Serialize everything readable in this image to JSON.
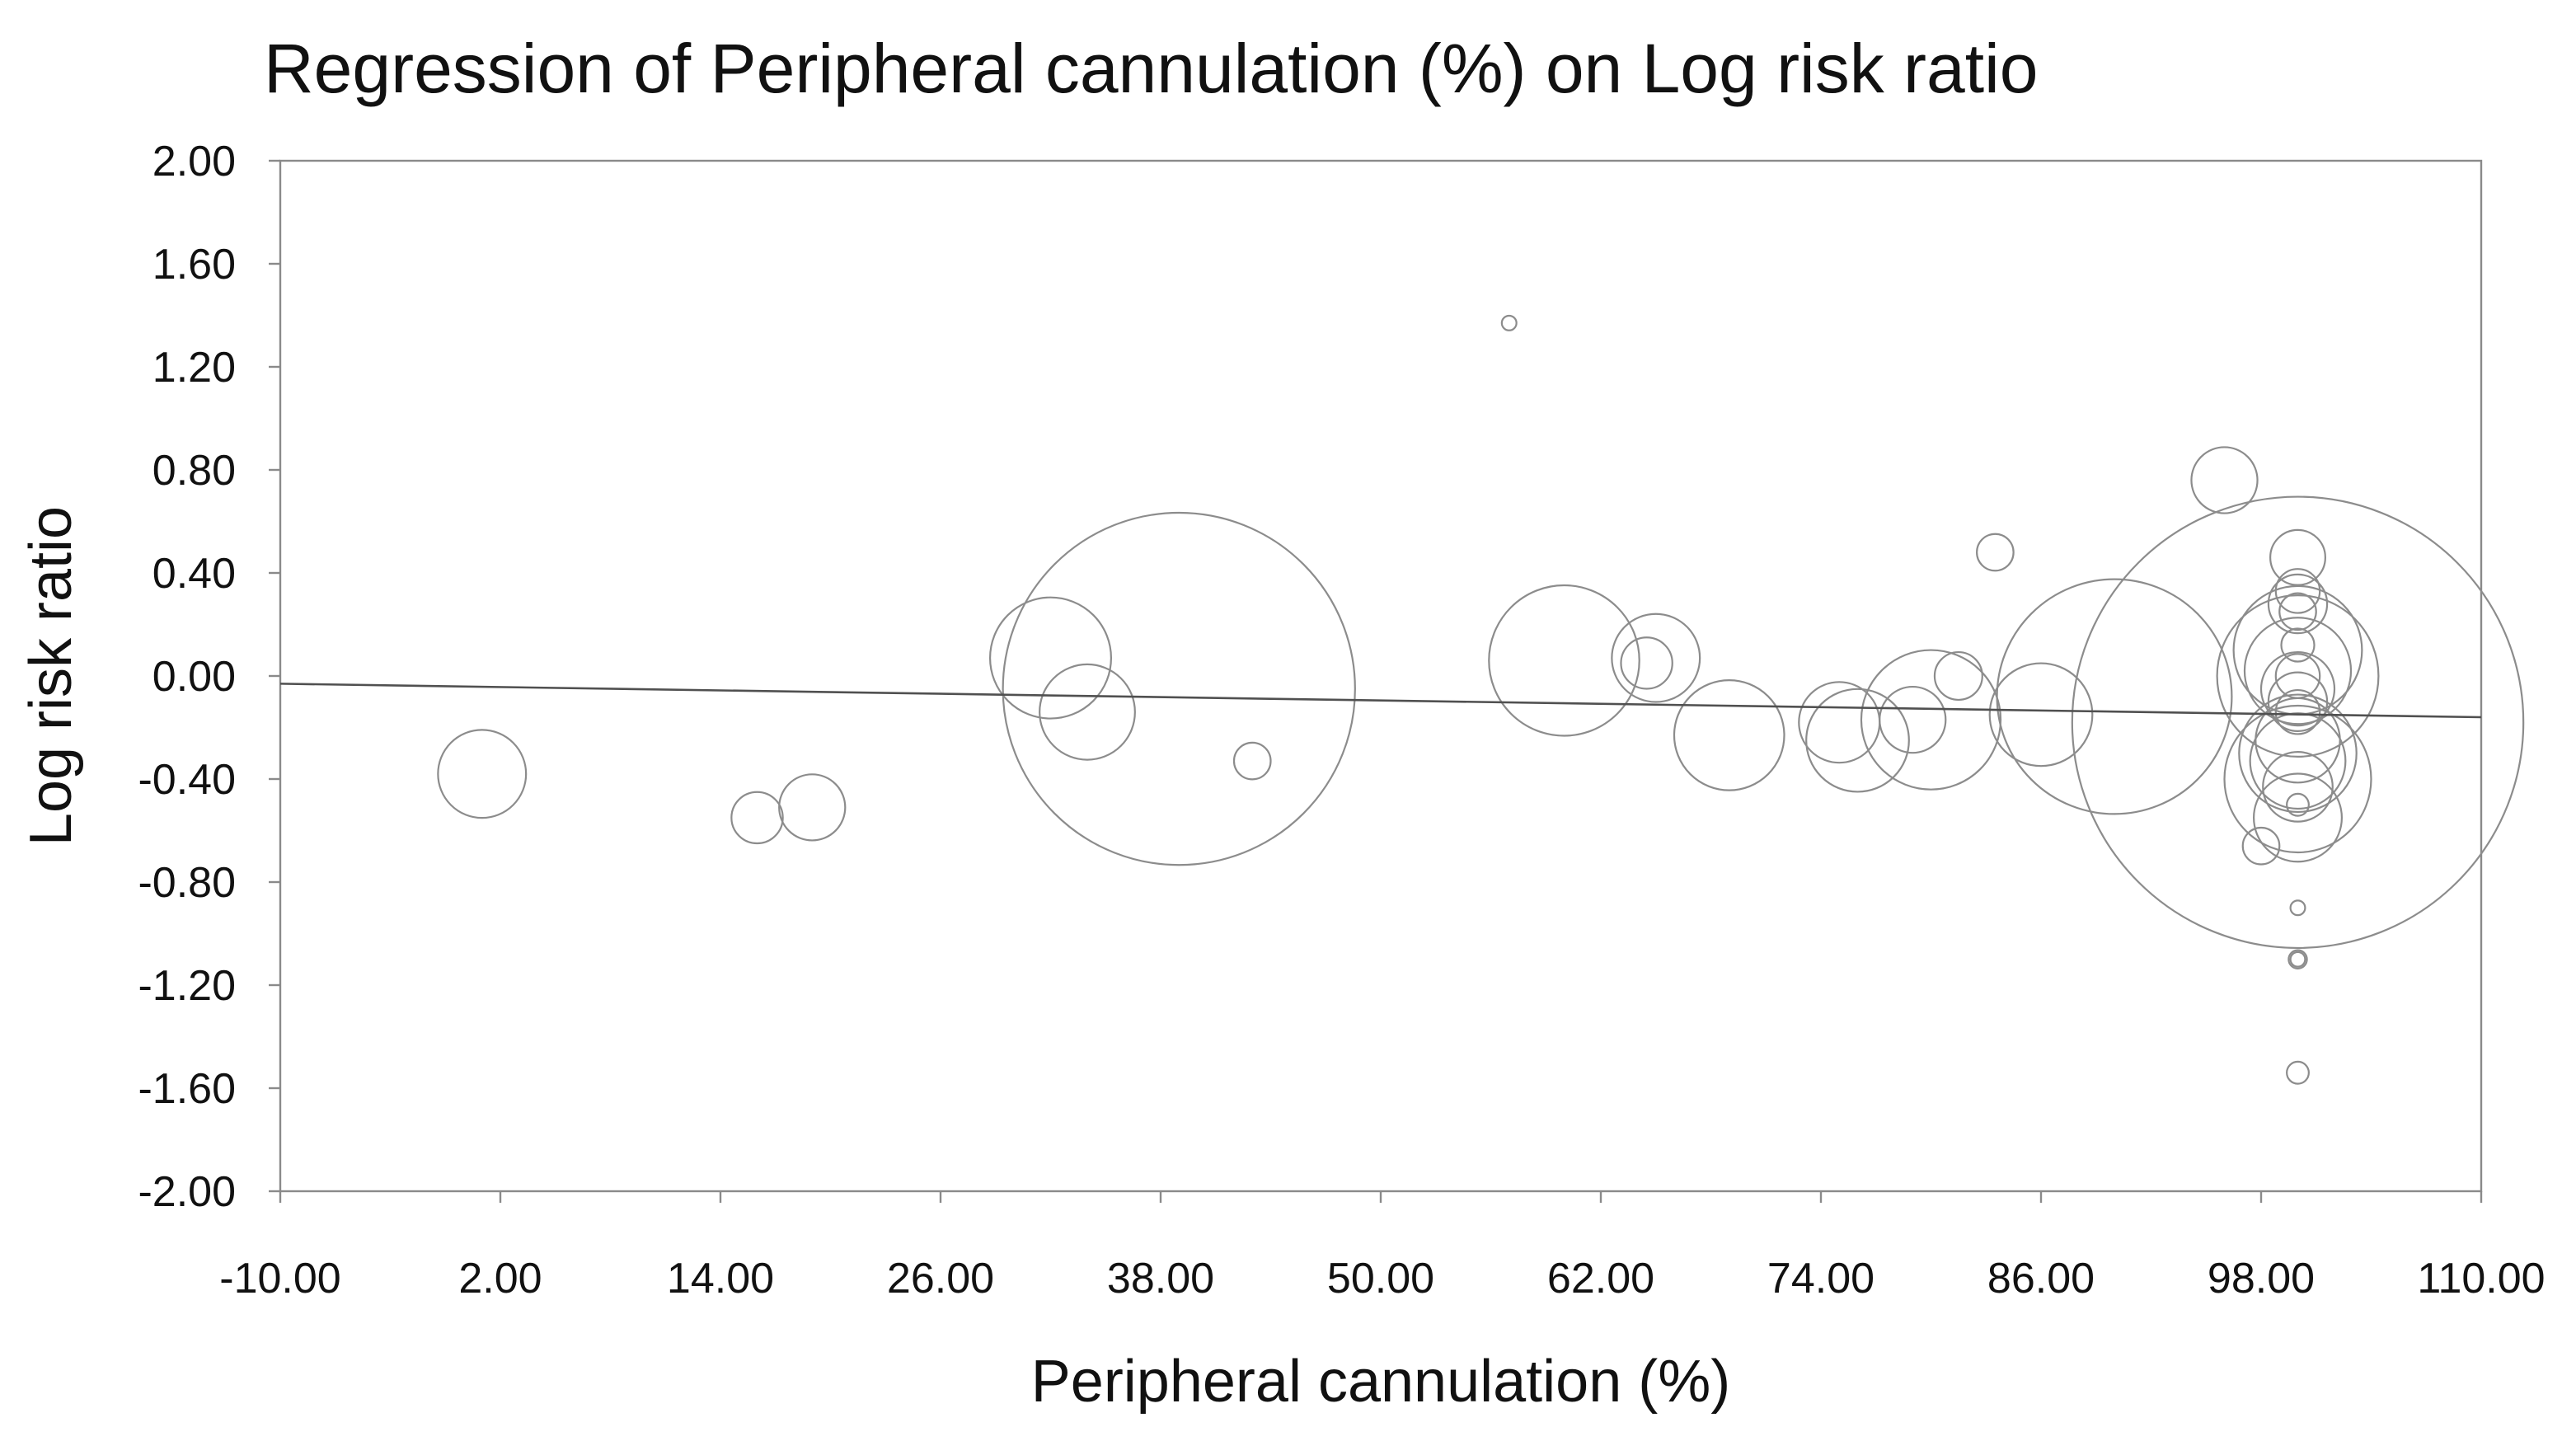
{
  "chart_data": {
    "type": "scatter",
    "title": "Regression of Peripheral cannulation (%) on Log risk ratio",
    "xlabel": "Peripheral cannulation (%)",
    "ylabel": "Log risk ratio",
    "xlim": [
      -10,
      110
    ],
    "ylim": [
      -2,
      2
    ],
    "x_ticks": [
      -10,
      2,
      14,
      26,
      38,
      50,
      62,
      74,
      86,
      98,
      110
    ],
    "y_ticks": [
      -2,
      -1.6,
      -1.2,
      -0.8,
      -0.4,
      0,
      0.4,
      0.8,
      1.2,
      1.6,
      2
    ],
    "x_tick_labels": [
      "-10.00",
      "2.00",
      "14.00",
      "26.00",
      "38.00",
      "50.00",
      "62.00",
      "74.00",
      "86.00",
      "98.00",
      "110.00"
    ],
    "y_tick_labels": [
      "-2.00",
      "-1.60",
      "-1.20",
      "-0.80",
      "-0.40",
      "0.00",
      "0.40",
      "0.80",
      "1.20",
      "1.60",
      "2.00"
    ],
    "grid": false,
    "regression_line": {
      "x": [
        -10,
        110
      ],
      "y": [
        -0.03,
        -0.16
      ]
    },
    "point_size_meaning": "bubble area proportional to study weight (relative radius)",
    "points": [
      {
        "x": 1.0,
        "y": -0.38,
        "r": 2.4
      },
      {
        "x": 16.0,
        "y": -0.55,
        "r": 1.4
      },
      {
        "x": 19.0,
        "y": -0.51,
        "r": 1.8
      },
      {
        "x": 32.0,
        "y": 0.07,
        "r": 3.3
      },
      {
        "x": 34.0,
        "y": -0.14,
        "r": 2.6
      },
      {
        "x": 39.0,
        "y": -0.05,
        "r": 9.6
      },
      {
        "x": 43.0,
        "y": -0.33,
        "r": 1.0
      },
      {
        "x": 57.0,
        "y": 1.37,
        "r": 0.4
      },
      {
        "x": 60.0,
        "y": 0.06,
        "r": 4.1
      },
      {
        "x": 64.5,
        "y": 0.05,
        "r": 1.4
      },
      {
        "x": 65.0,
        "y": 0.07,
        "r": 2.4
      },
      {
        "x": 69.0,
        "y": -0.23,
        "r": 3.0
      },
      {
        "x": 75.0,
        "y": -0.18,
        "r": 2.2
      },
      {
        "x": 76.0,
        "y": -0.25,
        "r": 2.8
      },
      {
        "x": 79.0,
        "y": -0.17,
        "r": 1.8
      },
      {
        "x": 80.0,
        "y": -0.17,
        "r": 3.8
      },
      {
        "x": 81.5,
        "y": 0.0,
        "r": 1.3
      },
      {
        "x": 83.5,
        "y": 0.48,
        "r": 1.0
      },
      {
        "x": 86.0,
        "y": -0.15,
        "r": 2.8
      },
      {
        "x": 90.0,
        "y": -0.08,
        "r": 6.4
      },
      {
        "x": 96.0,
        "y": 0.76,
        "r": 1.8
      },
      {
        "x": 98.0,
        "y": -0.66,
        "r": 1.0
      },
      {
        "x": 100.0,
        "y": 0.46,
        "r": 1.5
      },
      {
        "x": 100.0,
        "y": 0.33,
        "r": 1.2
      },
      {
        "x": 100.0,
        "y": 0.28,
        "r": 1.6
      },
      {
        "x": 100.0,
        "y": 0.25,
        "r": 1.0
      },
      {
        "x": 100.0,
        "y": 0.12,
        "r": 0.9
      },
      {
        "x": 100.0,
        "y": 0.1,
        "r": 3.5
      },
      {
        "x": 100.0,
        "y": 0.02,
        "r": 2.9
      },
      {
        "x": 100.0,
        "y": 0.0,
        "r": 4.4
      },
      {
        "x": 100.0,
        "y": 0.0,
        "r": 1.2
      },
      {
        "x": 100.0,
        "y": -0.05,
        "r": 2.0
      },
      {
        "x": 100.0,
        "y": -0.1,
        "r": 1.6
      },
      {
        "x": 100.0,
        "y": -0.14,
        "r": 1.2
      },
      {
        "x": 100.0,
        "y": -0.18,
        "r": 12.3
      },
      {
        "x": 100.0,
        "y": -0.25,
        "r": 2.3
      },
      {
        "x": 100.0,
        "y": -0.3,
        "r": 3.2
      },
      {
        "x": 100.0,
        "y": -0.33,
        "r": 2.6
      },
      {
        "x": 100.0,
        "y": -0.4,
        "r": 4.0
      },
      {
        "x": 100.0,
        "y": -0.43,
        "r": 1.9
      },
      {
        "x": 100.0,
        "y": -0.5,
        "r": 0.6
      },
      {
        "x": 100.0,
        "y": -0.55,
        "r": 2.4
      },
      {
        "x": 100.0,
        "y": -0.9,
        "r": 0.4
      },
      {
        "x": 100.0,
        "y": -1.1,
        "r": 0.5
      },
      {
        "x": 100.0,
        "y": -1.1,
        "r": 0.4
      },
      {
        "x": 100.0,
        "y": -1.54,
        "r": 0.6
      }
    ]
  }
}
